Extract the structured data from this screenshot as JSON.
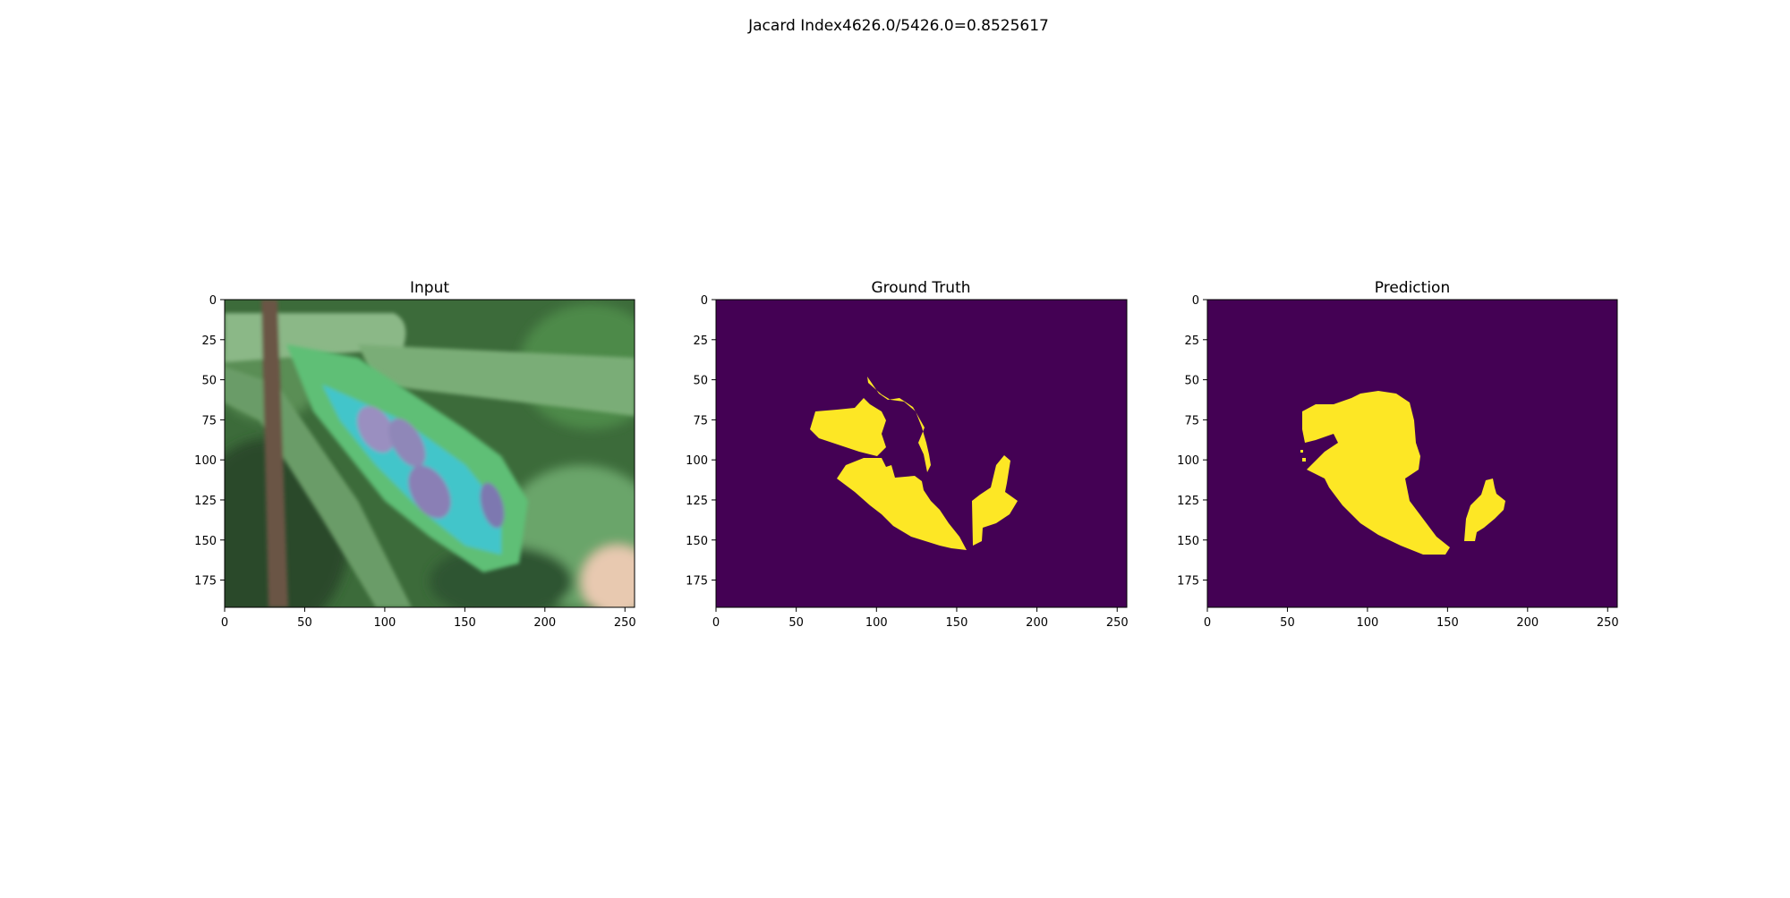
{
  "figure": {
    "suptitle": "Jacard Index4626.0/5426.0=0.8525617",
    "colors": {
      "background": "#440154",
      "foreground": "#fde725",
      "axis": "#000000"
    },
    "axes": {
      "x_ticks": [
        0,
        50,
        100,
        150,
        200,
        250
      ],
      "y_ticks": [
        0,
        25,
        50,
        75,
        100,
        125,
        150,
        175
      ],
      "x_limit": [
        0,
        256
      ],
      "y_limit": [
        192,
        0
      ]
    },
    "panels": [
      {
        "id": "input",
        "title": "Input"
      },
      {
        "id": "ground-truth",
        "title": "Ground Truth"
      },
      {
        "id": "prediction",
        "title": "Prediction"
      }
    ]
  }
}
